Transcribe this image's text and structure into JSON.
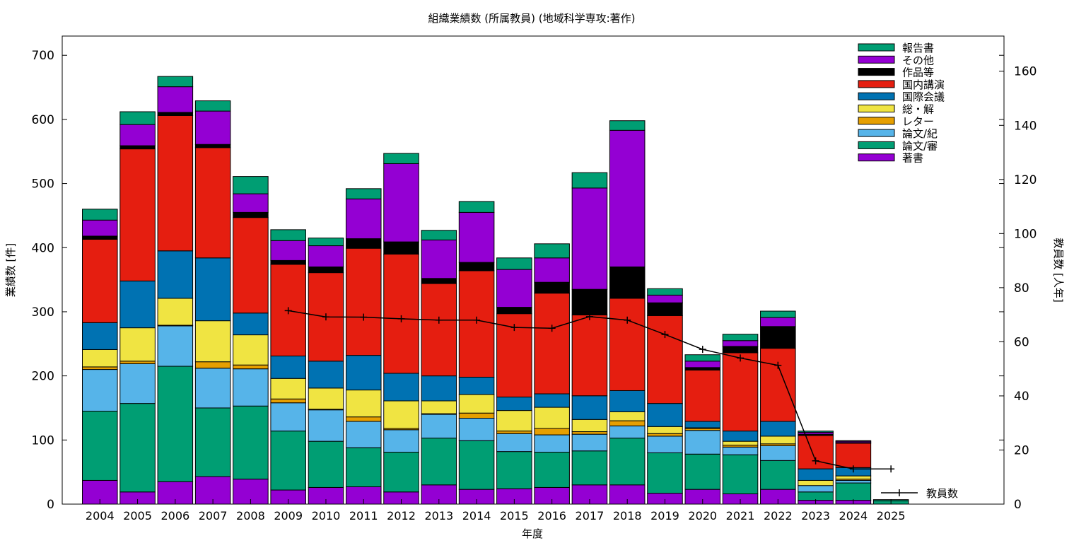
{
  "chart_data": {
    "type": "bar",
    "stacked": true,
    "title": "組織業績数 (所属教員) (地域科学専攻:著作)",
    "xlabel": "年度",
    "ylabel": "業績数 [件]",
    "y2label": "教員数 [人年]",
    "ylim": [
      0,
      730
    ],
    "y2lim": [
      0,
      173
    ],
    "yticks": [
      0,
      100,
      200,
      300,
      400,
      500,
      600,
      700
    ],
    "y2ticks": [
      0,
      20,
      40,
      60,
      80,
      100,
      120,
      140,
      160
    ],
    "legend_position": "top-right",
    "categories": [
      "2004",
      "2005",
      "2006",
      "2007",
      "2008",
      "2009",
      "2010",
      "2011",
      "2012",
      "2013",
      "2014",
      "2015",
      "2016",
      "2017",
      "2018",
      "2019",
      "2020",
      "2021",
      "2022",
      "2023",
      "2024",
      "2025"
    ],
    "series": [
      {
        "name": "著書",
        "color": "#9400d3",
        "values": [
          37,
          19,
          35,
          43,
          39,
          22,
          26,
          27,
          19,
          30,
          23,
          24,
          26,
          30,
          30,
          17,
          23,
          16,
          23,
          6,
          6,
          0
        ]
      },
      {
        "name": "論文/審",
        "color": "#009e73",
        "values": [
          108,
          138,
          180,
          107,
          114,
          92,
          72,
          61,
          62,
          73,
          76,
          58,
          55,
          53,
          73,
          63,
          55,
          61,
          45,
          13,
          27,
          5
        ]
      },
      {
        "name": "論文/紀",
        "color": "#56b4e9",
        "values": [
          65,
          62,
          63,
          62,
          58,
          44,
          49,
          41,
          35,
          37,
          35,
          28,
          27,
          26,
          19,
          26,
          37,
          12,
          23,
          10,
          4,
          0
        ]
      },
      {
        "name": "レター",
        "color": "#e69f00",
        "values": [
          4,
          4,
          1,
          10,
          6,
          6,
          1,
          7,
          2,
          1,
          8,
          4,
          10,
          4,
          8,
          4,
          3,
          3,
          3,
          0,
          2,
          0
        ]
      },
      {
        "name": "総・解",
        "color": "#f0e442",
        "values": [
          27,
          52,
          42,
          64,
          47,
          32,
          33,
          42,
          43,
          20,
          29,
          32,
          33,
          19,
          14,
          11,
          1,
          6,
          12,
          8,
          5,
          0
        ]
      },
      {
        "name": "国際会議",
        "color": "#0072b2",
        "values": [
          42,
          73,
          74,
          98,
          34,
          35,
          42,
          54,
          43,
          39,
          27,
          21,
          21,
          37,
          33,
          36,
          10,
          16,
          23,
          18,
          13,
          0
        ]
      },
      {
        "name": "国内講演",
        "color": "#e51e10",
        "values": [
          130,
          206,
          211,
          172,
          149,
          143,
          138,
          167,
          186,
          144,
          166,
          130,
          157,
          126,
          144,
          137,
          80,
          122,
          114,
          52,
          38,
          0
        ]
      },
      {
        "name": "作品等",
        "color": "#000000",
        "values": [
          5,
          5,
          5,
          5,
          8,
          6,
          9,
          15,
          19,
          8,
          13,
          10,
          17,
          40,
          49,
          20,
          4,
          10,
          34,
          2,
          1,
          0
        ]
      },
      {
        "name": "その他",
        "color": "#9400d3",
        "values": [
          25,
          33,
          40,
          52,
          29,
          31,
          33,
          62,
          122,
          60,
          78,
          59,
          38,
          158,
          213,
          12,
          10,
          9,
          14,
          3,
          2,
          0
        ]
      },
      {
        "name": "報告書",
        "color": "#009e73",
        "values": [
          17,
          20,
          16,
          16,
          27,
          17,
          12,
          16,
          16,
          15,
          17,
          18,
          22,
          24,
          15,
          10,
          10,
          10,
          10,
          2,
          1,
          2
        ]
      }
    ],
    "line_series": {
      "name": "教員数",
      "axis": "y2",
      "categories": [
        "2009",
        "2010",
        "2011",
        "2012",
        "2013",
        "2014",
        "2015",
        "2016",
        "2017",
        "2018",
        "2019",
        "2020",
        "2021",
        "2022",
        "2023",
        "2024",
        "2025"
      ],
      "values": [
        71.5,
        69.2,
        69.1,
        68.5,
        68.0,
        68.0,
        65.3,
        65.0,
        69.3,
        68.0,
        62.7,
        57.2,
        54.0,
        51.3,
        16.0,
        13.0,
        13.0
      ]
    }
  }
}
